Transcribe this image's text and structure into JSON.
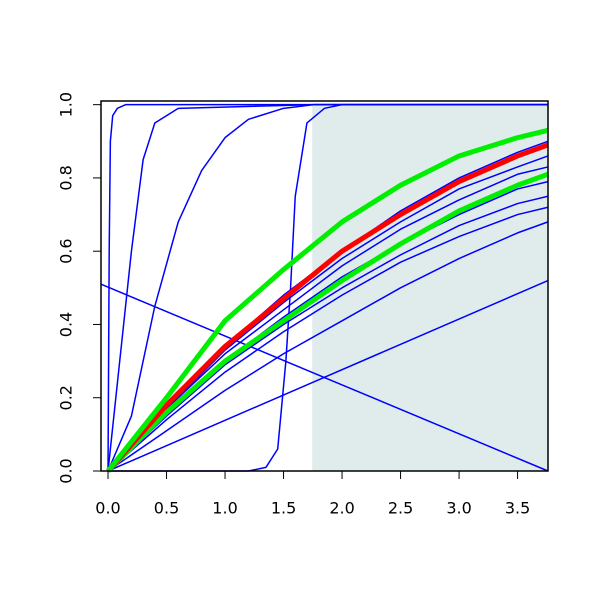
{
  "chart_data": {
    "type": "line",
    "xlim": [
      -0.06,
      3.76
    ],
    "ylim": [
      0,
      1.01
    ],
    "xticks": [
      {
        "value": 0,
        "label": "0.0"
      },
      0.5,
      {
        "value": 1,
        "label": "1.0"
      },
      1.5,
      {
        "value": 2,
        "label": "2.0"
      },
      2.5,
      {
        "value": 3,
        "label": "3.0"
      },
      3.5
    ],
    "yticks": [
      {
        "value": 0,
        "label": "0.0"
      },
      0.2,
      0.4,
      0.6,
      0.8,
      {
        "value": 1,
        "label": "1.0"
      }
    ],
    "shaded_region": {
      "xlim": [
        1.745,
        3.76
      ],
      "ylim": [
        0,
        1
      ],
      "color": "#e0ecec"
    },
    "series": [
      {
        "color": "#0000ff",
        "line_width": 1.5,
        "x": [
          0,
          0.01,
          0.02,
          0.04,
          0.08,
          0.15,
          0.3,
          3.76
        ],
        "values": [
          0,
          0.6,
          0.9,
          0.97,
          0.99,
          1,
          1,
          1
        ]
      },
      {
        "color": "#0000ff",
        "line_width": 1.5,
        "x": [
          0,
          0.1,
          0.2,
          0.3,
          0.4,
          0.6,
          1.76,
          3.76
        ],
        "values": [
          0,
          0.3,
          0.6,
          0.85,
          0.95,
          0.99,
          1,
          1
        ]
      },
      {
        "color": "#0000ff",
        "line_width": 1.5,
        "x": [
          0,
          0.2,
          0.4,
          0.6,
          0.8,
          1.0,
          1.2,
          1.5,
          1.76,
          3.76
        ],
        "values": [
          0,
          0.15,
          0.45,
          0.68,
          0.82,
          0.91,
          0.96,
          0.99,
          1,
          1
        ]
      },
      {
        "color": "#0000ff",
        "line_width": 1.5,
        "x": [
          0,
          1.2,
          1.35,
          1.45,
          1.52,
          1.56,
          1.6,
          1.7,
          1.85,
          2.0,
          3.76
        ],
        "values": [
          0,
          0,
          0.01,
          0.06,
          0.3,
          0.5,
          0.75,
          0.95,
          0.99,
          1,
          1
        ]
      },
      {
        "color": "#0000ff",
        "line_width": 1.5,
        "x": [
          0,
          0.5,
          1,
          1.5,
          2,
          2.5,
          3,
          3.5,
          3.76
        ],
        "values": [
          0,
          0.18,
          0.34,
          0.48,
          0.6,
          0.71,
          0.8,
          0.87,
          0.9
        ]
      },
      {
        "color": "#0000ff",
        "line_width": 1.5,
        "x": [
          0,
          0.5,
          1,
          1.5,
          2,
          2.5,
          3,
          3.5,
          3.76
        ],
        "values": [
          0,
          0.17,
          0.33,
          0.46,
          0.58,
          0.68,
          0.77,
          0.83,
          0.86
        ]
      },
      {
        "color": "#0000ff",
        "line_width": 1.5,
        "x": [
          0,
          0.5,
          1,
          1.5,
          2,
          2.5,
          3,
          3.5,
          3.76
        ],
        "values": [
          0,
          0.17,
          0.32,
          0.44,
          0.56,
          0.66,
          0.74,
          0.81,
          0.83
        ]
      },
      {
        "color": "#0000ff",
        "line_width": 1.5,
        "x": [
          0,
          0.5,
          1,
          1.5,
          2,
          2.5,
          3,
          3.5,
          3.76
        ],
        "values": [
          0,
          0.16,
          0.3,
          0.42,
          0.53,
          0.62,
          0.7,
          0.77,
          0.79
        ]
      },
      {
        "color": "#0000ff",
        "line_width": 1.5,
        "x": [
          0,
          0.5,
          1,
          1.5,
          2,
          2.5,
          3,
          3.5,
          3.76
        ],
        "values": [
          0,
          0.15,
          0.29,
          0.4,
          0.5,
          0.59,
          0.67,
          0.73,
          0.75
        ]
      },
      {
        "color": "#0000ff",
        "line_width": 1.5,
        "x": [
          0,
          0.5,
          1,
          1.5,
          2,
          2.5,
          3,
          3.5,
          3.76
        ],
        "values": [
          0,
          0.14,
          0.27,
          0.38,
          0.48,
          0.57,
          0.64,
          0.7,
          0.72
        ]
      },
      {
        "color": "#0000ff",
        "line_width": 1.5,
        "x": [
          0,
          0.5,
          1,
          1.5,
          2,
          2.5,
          3,
          3.5,
          3.76
        ],
        "values": [
          0,
          0.11,
          0.22,
          0.32,
          0.41,
          0.5,
          0.58,
          0.65,
          0.68
        ]
      },
      {
        "color": "#0000ff",
        "line_width": 1.5,
        "x": [
          0,
          3.76
        ],
        "values": [
          0,
          0.52
        ]
      },
      {
        "color": "#0000ff",
        "line_width": 1.5,
        "x": [
          -0.06,
          3.76
        ],
        "values": [
          0.51,
          0
        ]
      },
      {
        "color": "#00ee00",
        "line_width": 5,
        "x": [
          0,
          0.5,
          1,
          1.5,
          2,
          2.5,
          3,
          3.5,
          3.76
        ],
        "values": [
          0,
          0.16,
          0.3,
          0.41,
          0.52,
          0.62,
          0.71,
          0.78,
          0.81
        ]
      },
      {
        "color": "#ff0000",
        "line_width": 5,
        "x": [
          0,
          0.5,
          1,
          1.5,
          2,
          2.5,
          3,
          3.5,
          3.76
        ],
        "values": [
          0,
          0.18,
          0.34,
          0.47,
          0.6,
          0.7,
          0.79,
          0.86,
          0.89
        ]
      },
      {
        "color": "#00ee00",
        "line_width": 5,
        "x": [
          0,
          0.5,
          1,
          1.5,
          2,
          2.5,
          3,
          3.5,
          3.76
        ],
        "values": [
          0,
          0.2,
          0.41,
          0.55,
          0.68,
          0.78,
          0.86,
          0.91,
          0.93
        ]
      }
    ]
  }
}
